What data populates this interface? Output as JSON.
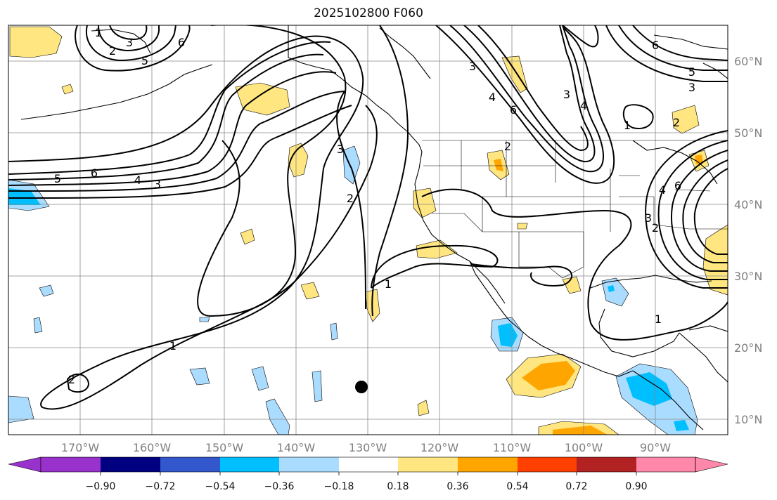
{
  "title": "2025102800 F060",
  "lon_ticks": [
    "170°W",
    "160°W",
    "150°W",
    "140°W",
    "130°W",
    "120°W",
    "110°W",
    "100°W",
    "90°W"
  ],
  "lat_ticks": [
    "60°N",
    "50°N",
    "40°N",
    "30°N",
    "20°N",
    "10°N"
  ],
  "colorbar": {
    "labels": [
      "−0.90",
      "−0.72",
      "−0.54",
      "−0.36",
      "−0.18",
      "0.18",
      "0.36",
      "0.54",
      "0.72",
      "0.90"
    ],
    "colors": [
      "#9932cc",
      "#000080",
      "#3357cc",
      "#00bfff",
      "#aadcff",
      "#ffffff",
      "#ffe680",
      "#ffa500",
      "#ff4000",
      "#b22222",
      "#ff88aa"
    ],
    "extend": "both"
  },
  "contour_labels": [
    "6",
    "5",
    "3",
    "2",
    "1",
    "5",
    "6",
    "4",
    "3",
    "3",
    "2",
    "2",
    "1",
    "1",
    "2",
    "3",
    "4",
    "6",
    "4",
    "3",
    "6",
    "5",
    "3",
    "2",
    "1",
    "1",
    "2",
    "3",
    "4",
    "6"
  ],
  "colors": {
    "positive_fill": "#ffe680",
    "negative_fill": "#aadcff",
    "strong_positive": "#ffa500",
    "strong_negative": "#00bfff",
    "contour": "#000000",
    "grid": "#888888",
    "coastline": "#000000"
  }
}
